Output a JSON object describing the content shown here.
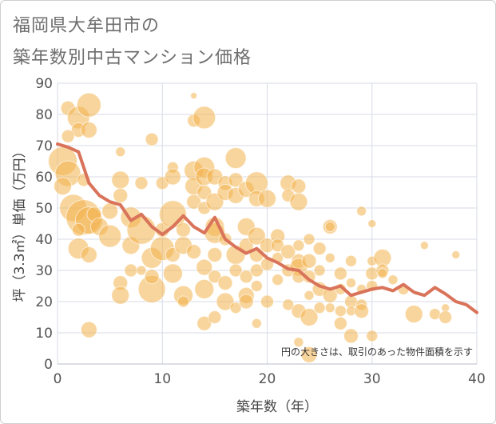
{
  "title_line1": "福岡県大牟田市の",
  "title_line2": "築年数別中古マンション価格",
  "chart_data": {
    "type": "scatter",
    "xlabel": "築年数（年）",
    "ylabel": "坪（3.3㎡）単価（万円）",
    "note": "円の大きさは、取引のあった物件面積を示す",
    "xlim": [
      0,
      40
    ],
    "ylim": [
      0,
      90
    ],
    "xticks": [
      0,
      10,
      20,
      30,
      40
    ],
    "yticks": [
      0,
      10,
      20,
      30,
      40,
      50,
      60,
      70,
      80,
      90
    ],
    "grid": true,
    "colors": {
      "bubble": "#f2b24c",
      "line": "#d9735a",
      "grid": "#d7dbe6"
    },
    "line_series": {
      "x": [
        0,
        1,
        2,
        3,
        4,
        5,
        6,
        7,
        8,
        9,
        10,
        11,
        12,
        13,
        14,
        15,
        16,
        17,
        18,
        19,
        20,
        21,
        22,
        23,
        24,
        25,
        26,
        27,
        28,
        29,
        30,
        31,
        32,
        33,
        34,
        35,
        36,
        37,
        38,
        39,
        40
      ],
      "y": [
        70.5,
        69.5,
        68,
        58,
        54,
        52,
        51,
        46,
        48,
        44,
        41.5,
        44,
        47.5,
        44,
        42,
        47,
        40,
        37.5,
        35.5,
        37,
        34,
        32.5,
        30.5,
        30,
        27,
        25,
        24,
        25,
        22,
        23,
        24,
        24.5,
        23.5,
        25.5,
        23,
        22,
        24.5,
        22.5,
        20,
        19,
        16.5
      ]
    },
    "bubbles": [
      [
        0.5,
        65,
        18
      ],
      [
        1,
        61,
        16
      ],
      [
        1,
        82,
        9
      ],
      [
        0.5,
        57,
        11
      ],
      [
        2,
        79,
        14
      ],
      [
        3,
        83,
        15
      ],
      [
        2,
        75,
        9
      ],
      [
        3,
        75,
        10
      ],
      [
        1,
        73,
        8
      ],
      [
        1.5,
        50,
        17
      ],
      [
        2.5,
        47,
        22
      ],
      [
        3,
        46,
        17
      ],
      [
        2,
        37,
        13
      ],
      [
        3,
        35,
        10
      ],
      [
        2,
        43,
        8
      ],
      [
        3,
        11,
        10
      ],
      [
        3.5,
        48,
        9
      ],
      [
        2.5,
        59,
        8
      ],
      [
        4,
        44,
        11
      ],
      [
        5,
        41,
        14
      ],
      [
        5,
        49,
        10
      ],
      [
        6,
        59,
        11
      ],
      [
        6,
        54,
        9
      ],
      [
        6,
        68,
        6
      ],
      [
        6,
        26,
        9
      ],
      [
        6,
        22,
        11
      ],
      [
        7,
        47,
        13
      ],
      [
        7,
        38,
        11
      ],
      [
        7,
        30,
        8
      ],
      [
        8,
        43,
        18
      ],
      [
        8,
        58,
        8
      ],
      [
        8,
        30,
        6
      ],
      [
        9,
        72,
        8
      ],
      [
        9,
        34,
        13
      ],
      [
        9,
        24,
        17
      ],
      [
        9,
        28,
        9
      ],
      [
        10,
        37,
        15
      ],
      [
        10,
        43,
        9
      ],
      [
        10,
        58,
        8
      ],
      [
        11,
        48,
        17
      ],
      [
        11,
        63,
        7
      ],
      [
        11,
        35,
        9
      ],
      [
        11,
        29,
        12
      ],
      [
        11,
        60,
        10
      ],
      [
        12,
        43,
        9
      ],
      [
        12,
        22,
        12
      ],
      [
        12,
        20,
        7
      ],
      [
        12,
        38,
        11
      ],
      [
        13,
        86,
        4
      ],
      [
        13,
        78,
        8
      ],
      [
        13,
        62,
        12
      ],
      [
        13,
        57,
        11
      ],
      [
        13,
        52,
        9
      ],
      [
        13,
        36,
        9
      ],
      [
        14,
        79,
        14
      ],
      [
        14,
        63,
        13
      ],
      [
        14,
        60,
        11
      ],
      [
        14,
        55,
        9
      ],
      [
        14,
        50,
        8
      ],
      [
        14,
        31,
        10
      ],
      [
        14,
        24,
        12
      ],
      [
        14,
        13,
        9
      ],
      [
        15,
        60,
        10
      ],
      [
        15,
        52,
        11
      ],
      [
        15,
        44,
        12
      ],
      [
        15,
        42,
        13
      ],
      [
        15,
        35,
        9
      ],
      [
        15,
        28,
        8
      ],
      [
        15,
        15,
        8
      ],
      [
        16,
        58,
        9
      ],
      [
        16,
        55,
        10
      ],
      [
        16,
        40,
        8
      ],
      [
        16,
        26,
        9
      ],
      [
        16,
        20,
        11
      ],
      [
        17,
        66,
        13
      ],
      [
        17,
        59,
        9
      ],
      [
        17,
        54,
        10
      ],
      [
        17,
        35,
        12
      ],
      [
        17,
        30,
        8
      ],
      [
        17,
        18,
        7
      ],
      [
        18,
        56,
        10
      ],
      [
        18,
        44,
        11
      ],
      [
        18,
        38,
        9
      ],
      [
        18,
        28,
        8
      ],
      [
        18,
        22,
        10
      ],
      [
        18,
        20,
        9
      ],
      [
        19,
        58,
        14
      ],
      [
        19,
        53,
        10
      ],
      [
        19,
        41,
        11
      ],
      [
        19,
        35,
        9
      ],
      [
        19,
        30,
        8
      ],
      [
        19,
        25,
        7
      ],
      [
        19,
        13,
        6
      ],
      [
        20,
        53,
        11
      ],
      [
        20,
        38,
        9
      ],
      [
        20,
        32,
        8
      ],
      [
        20,
        20,
        8
      ],
      [
        21,
        41,
        9
      ],
      [
        21,
        38,
        8
      ],
      [
        21,
        34,
        7
      ],
      [
        21,
        27,
        7
      ],
      [
        22,
        58,
        10
      ],
      [
        22,
        54,
        8
      ],
      [
        22,
        36,
        9
      ],
      [
        22,
        30,
        8
      ],
      [
        22,
        19,
        7
      ],
      [
        23,
        57,
        9
      ],
      [
        23,
        52,
        11
      ],
      [
        23,
        38,
        7
      ],
      [
        23,
        33,
        9
      ],
      [
        23,
        31,
        11
      ],
      [
        23,
        28,
        8
      ],
      [
        23,
        17,
        9
      ],
      [
        23,
        7,
        6
      ],
      [
        24,
        40,
        7
      ],
      [
        24,
        33,
        9
      ],
      [
        24,
        28,
        8
      ],
      [
        24,
        22,
        6
      ],
      [
        24,
        15,
        11
      ],
      [
        24,
        3,
        10
      ],
      [
        25,
        37,
        8
      ],
      [
        25,
        30,
        7
      ],
      [
        25,
        24,
        9
      ],
      [
        25,
        18,
        7
      ],
      [
        26,
        44,
        9
      ],
      [
        26,
        44,
        6
      ],
      [
        26,
        34,
        6
      ],
      [
        26,
        22,
        9
      ],
      [
        26,
        18,
        6
      ],
      [
        27,
        29,
        8
      ],
      [
        27,
        24,
        7
      ],
      [
        27,
        17,
        7
      ],
      [
        27,
        13,
        8
      ],
      [
        28,
        33,
        7
      ],
      [
        28,
        26,
        6
      ],
      [
        28,
        20,
        8
      ],
      [
        28,
        17,
        6
      ],
      [
        28,
        9,
        9
      ],
      [
        29,
        49,
        6
      ],
      [
        29,
        24,
        6
      ],
      [
        29,
        19,
        7
      ],
      [
        29,
        17,
        9
      ],
      [
        30,
        45,
        5
      ],
      [
        30,
        33,
        6
      ],
      [
        30,
        29,
        8
      ],
      [
        30,
        25,
        7
      ],
      [
        30,
        9,
        7
      ],
      [
        31,
        34,
        11
      ],
      [
        31,
        30,
        8
      ],
      [
        31,
        29,
        6
      ],
      [
        32,
        27,
        6
      ],
      [
        33,
        24,
        7
      ],
      [
        34,
        16,
        11
      ],
      [
        35,
        38,
        5
      ],
      [
        36,
        16,
        7
      ],
      [
        37,
        18,
        5
      ],
      [
        37,
        15,
        8
      ],
      [
        38,
        35,
        5
      ]
    ]
  }
}
